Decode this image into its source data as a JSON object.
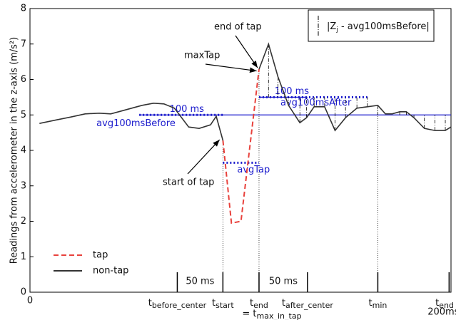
{
  "chart_data": {
    "type": "line",
    "ylabel": "Readings from accelerometer in the z-axis (m/s²)",
    "xlim": [
      0,
      443
    ],
    "ylim": [
      0,
      8
    ],
    "xticks": [
      0
    ],
    "yticks": [
      0,
      1,
      2,
      3,
      4,
      5,
      6,
      7,
      8
    ],
    "series": [
      {
        "name": "tap",
        "color": "#e8413c",
        "dashed": true,
        "x": [
          203,
          212,
          222,
          241
        ],
        "values": [
          4.28,
          1.95,
          2.0,
          6.29
        ]
      },
      {
        "name": "non-tap",
        "color": "#333333",
        "dashed": false,
        "x": [
          10,
          28,
          43,
          58,
          73,
          85,
          96,
          107,
          118,
          130,
          141,
          152,
          167,
          178,
          190,
          196,
          203,
          222,
          241,
          251,
          261,
          272,
          284,
          291,
          299,
          310,
          321,
          332,
          344,
          355,
          366,
          374,
          381,
          389,
          396,
          404,
          415,
          426,
          437,
          443
        ],
        "values": [
          4.76,
          4.86,
          4.94,
          5.03,
          5.05,
          5.03,
          5.11,
          5.19,
          5.27,
          5.33,
          5.31,
          5.19,
          4.66,
          4.62,
          4.72,
          4.96,
          4.28,
          null,
          6.29,
          7.0,
          6.07,
          5.27,
          4.78,
          4.92,
          5.23,
          5.23,
          4.56,
          4.92,
          5.19,
          5.23,
          5.27,
          5.03,
          5.03,
          5.09,
          5.09,
          4.92,
          4.62,
          4.56,
          4.56,
          4.66
        ]
      }
    ],
    "averages": [
      {
        "label": "avg100msBefore",
        "value": 5.0,
        "x": [
          115,
          203
        ],
        "line_x": [
          115,
          443
        ],
        "span_label": "100 ms"
      },
      {
        "label": "avgTap",
        "value": 3.65,
        "x": [
          203,
          241
        ]
      },
      {
        "label": "avg100msAfter",
        "value": 5.5,
        "x": [
          241,
          355
        ],
        "line_x": [
          241,
          292
        ],
        "span_label": "100 ms"
      }
    ],
    "time_markers": [
      {
        "label": "t",
        "sub": "before_center",
        "x": 155
      },
      {
        "label": "t",
        "sub": "start",
        "x": 203,
        "guide": true
      },
      {
        "label": "t",
        "sub": "end",
        "x": 241,
        "guide": true,
        "line2": "= t",
        "line2_sub": "max_in_tap"
      },
      {
        "label": "t",
        "sub": "after_center",
        "x": 292
      },
      {
        "label": "t",
        "sub": "min",
        "x": 366,
        "guide": true
      },
      {
        "label": "t",
        "sub": "end +",
        "x": 441,
        "line2": "200ms"
      }
    ],
    "spans": [
      {
        "label": "50 ms",
        "x": [
          155,
          203
        ]
      },
      {
        "label": "50 ms",
        "x": [
          241,
          292
        ]
      }
    ],
    "annotations": [
      {
        "text": "end of tap",
        "x": 241,
        "y": 6.29
      },
      {
        "text": "maxTap",
        "x": 240,
        "y": 6.2
      },
      {
        "text": "start of tap",
        "x": 201,
        "y": 4.3
      }
    ],
    "legend_box": {
      "sym": "|Z",
      "sub": "j",
      "rest": " - avg100msBefore|"
    }
  }
}
